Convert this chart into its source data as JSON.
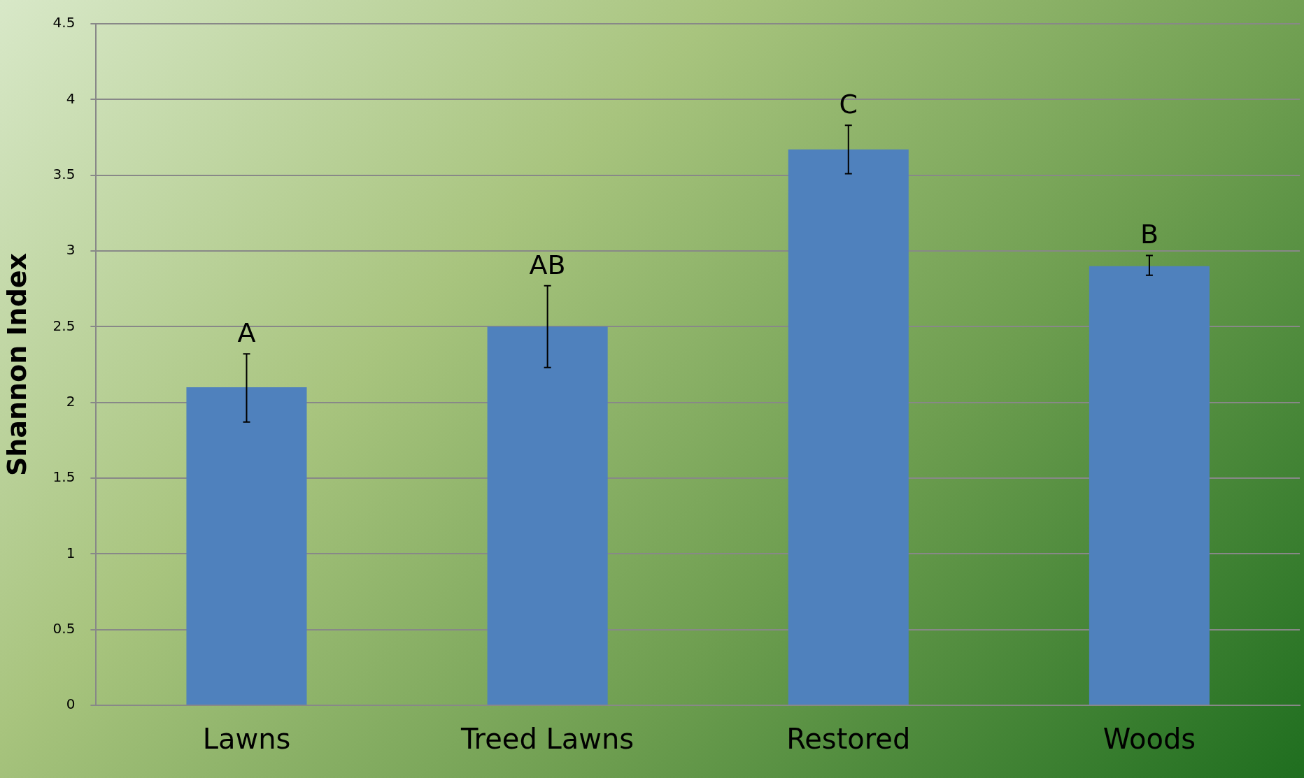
{
  "chart_data": {
    "type": "bar",
    "ylabel": "Shannon Index",
    "categories": [
      "Lawns",
      "Treed Lawns",
      "Restored",
      "Woods"
    ],
    "values": [
      2.1,
      2.5,
      3.67,
      2.9
    ],
    "errors": [
      [
        1.87,
        2.32
      ],
      [
        2.23,
        2.77
      ],
      [
        3.51,
        3.83
      ],
      [
        2.84,
        2.97
      ]
    ],
    "color": "#4f81bd",
    "ylim": [
      0,
      4.5
    ],
    "yticks": [
      0,
      0.5,
      1,
      1.5,
      2,
      2.5,
      3,
      3.5,
      4,
      4.5
    ],
    "grid": "y",
    "legend": false,
    "annotations": [
      {
        "text": "A",
        "x": "Lawns",
        "y": 2.32
      },
      {
        "text": "AB",
        "x": "Treed Lawns",
        "y": 2.77
      },
      {
        "text": "C",
        "x": "Restored",
        "y": 3.83
      },
      {
        "text": "B",
        "x": "Woods",
        "y": 2.97
      }
    ]
  }
}
